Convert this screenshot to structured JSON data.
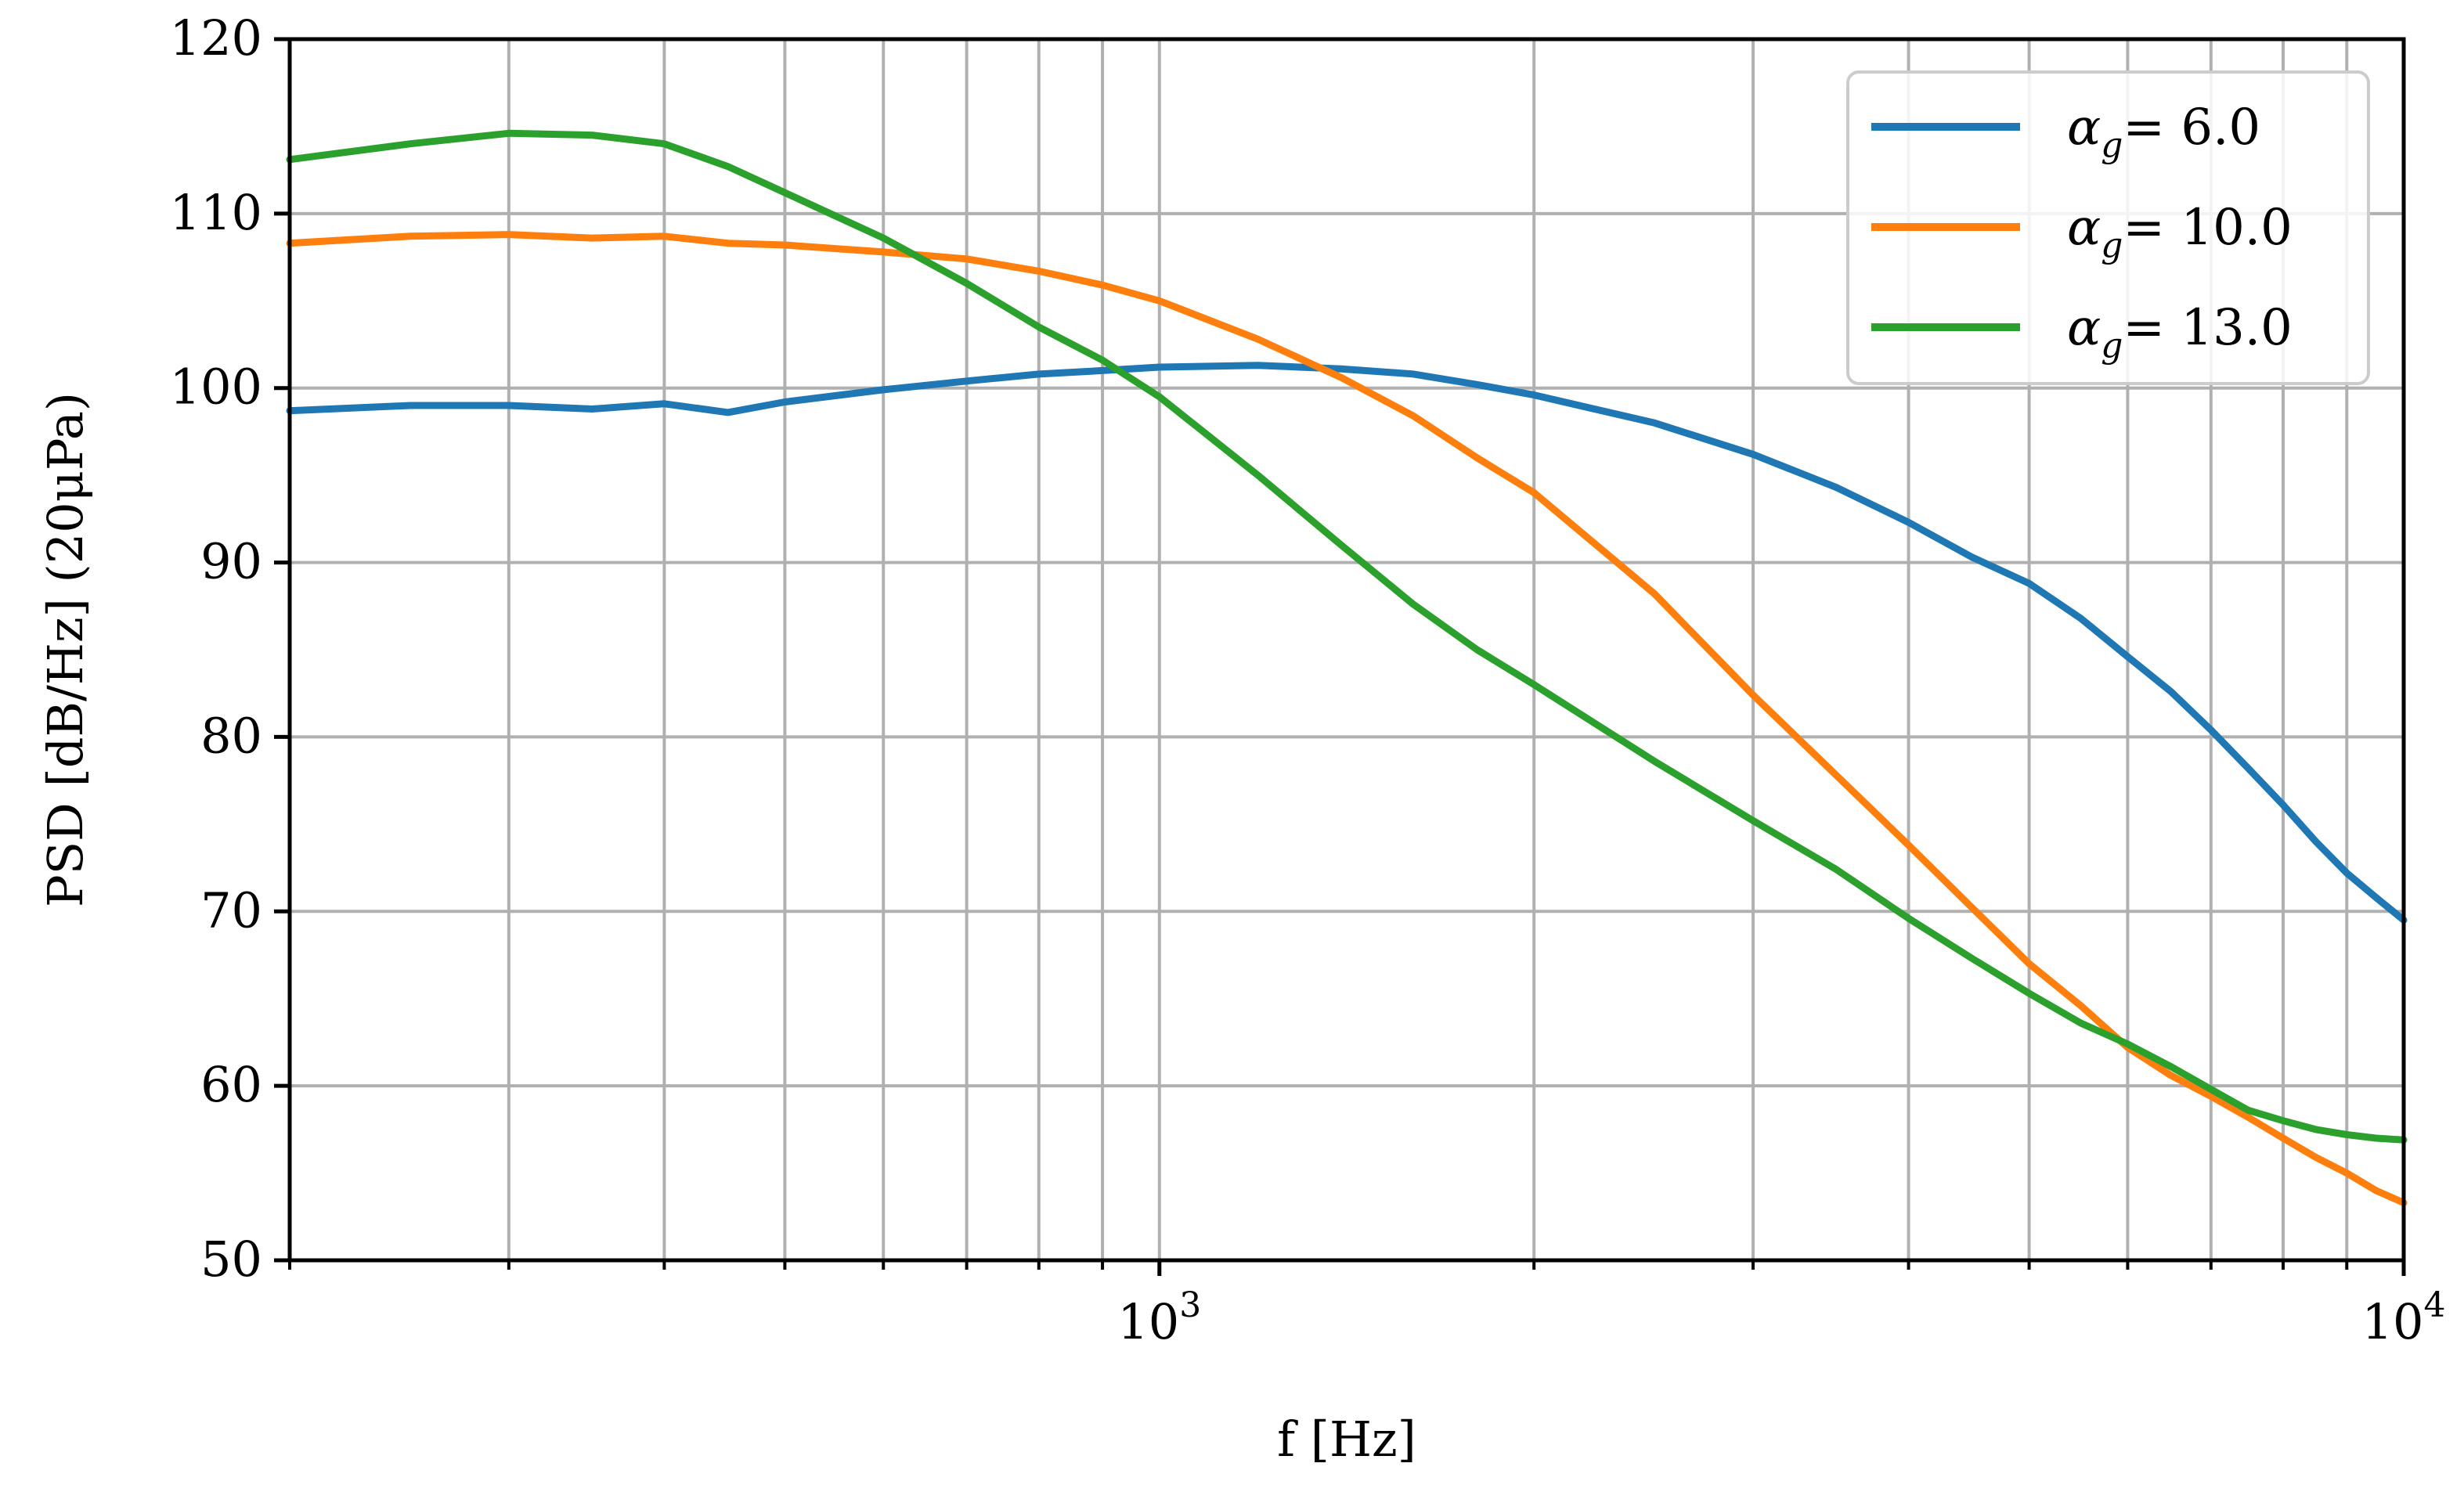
{
  "chart_data": {
    "type": "line",
    "xlabel": "f [Hz]",
    "ylabel": "PSD [dB/Hz] (20μPa)",
    "xscale": "log",
    "xlim": [
      200,
      10000
    ],
    "ylim": [
      50,
      120
    ],
    "grid": true,
    "legend_position": "top-right",
    "yticks": [
      50,
      60,
      70,
      80,
      90,
      100,
      110,
      120
    ],
    "ytick_labels": [
      "50",
      "60",
      "70",
      "80",
      "90",
      "100",
      "110",
      "120"
    ],
    "xticks_major": [
      1000,
      10000
    ],
    "xtick_labels_major": [
      {
        "base": "10",
        "exp": "3"
      },
      {
        "base": "10",
        "exp": "4"
      }
    ],
    "xticks_minor": [
      200,
      300,
      400,
      500,
      600,
      700,
      800,
      900,
      2000,
      3000,
      4000,
      5000,
      6000,
      7000,
      8000,
      9000
    ],
    "series": [
      {
        "name": "α_g= 6.0",
        "label_symbol": "α",
        "label_sub": "g",
        "label_value": "= 6.0",
        "color": "#1f77b4",
        "x": [
          200,
          250,
          300,
          350,
          400,
          450,
          500,
          600,
          700,
          800,
          900,
          1000,
          1200,
          1400,
          1600,
          1800,
          2000,
          2500,
          3000,
          3500,
          4000,
          4500,
          5000,
          5500,
          6000,
          6500,
          7000,
          7500,
          8000,
          8500,
          9000,
          9500,
          10000
        ],
        "y": [
          98.7,
          99.0,
          99.0,
          98.8,
          99.1,
          98.6,
          99.2,
          99.9,
          100.4,
          100.8,
          101.0,
          101.2,
          101.3,
          101.1,
          100.8,
          100.2,
          99.6,
          98.0,
          96.2,
          94.3,
          92.3,
          90.3,
          88.8,
          86.8,
          84.6,
          82.6,
          80.4,
          78.2,
          76.1,
          74.0,
          72.2,
          70.8,
          69.5
        ]
      },
      {
        "name": "α_g= 10.0",
        "label_symbol": "α",
        "label_sub": "g",
        "label_value": "= 10.0",
        "color": "#ff7f0e",
        "x": [
          200,
          250,
          300,
          350,
          400,
          450,
          500,
          600,
          700,
          800,
          900,
          1000,
          1200,
          1400,
          1600,
          1800,
          2000,
          2500,
          3000,
          3500,
          4000,
          4500,
          5000,
          5500,
          6000,
          6500,
          7000,
          7500,
          8000,
          8500,
          9000,
          9500,
          10000
        ],
        "y": [
          108.3,
          108.7,
          108.8,
          108.6,
          108.7,
          108.3,
          108.2,
          107.8,
          107.4,
          106.7,
          105.9,
          105.0,
          102.8,
          100.6,
          98.4,
          96.0,
          94.0,
          88.2,
          82.4,
          77.8,
          73.8,
          70.2,
          67.0,
          64.6,
          62.2,
          60.6,
          59.4,
          58.2,
          57.0,
          55.9,
          55.0,
          54.0,
          53.3
        ]
      },
      {
        "name": "α_g= 13.0",
        "label_symbol": "α",
        "label_sub": "g",
        "label_value": "= 13.0",
        "color": "#2ca02c",
        "x": [
          200,
          250,
          300,
          350,
          400,
          450,
          500,
          600,
          700,
          800,
          900,
          1000,
          1200,
          1400,
          1600,
          1800,
          2000,
          2500,
          3000,
          3500,
          4000,
          4500,
          5000,
          5500,
          6000,
          6500,
          7000,
          7500,
          8000,
          8500,
          9000,
          9500,
          10000
        ],
        "y": [
          113.1,
          114.0,
          114.6,
          114.5,
          114.0,
          112.7,
          111.2,
          108.6,
          106.0,
          103.5,
          101.6,
          99.5,
          95.0,
          91.0,
          87.6,
          85.0,
          83.0,
          78.6,
          75.2,
          72.4,
          69.6,
          67.3,
          65.3,
          63.6,
          62.4,
          61.1,
          59.8,
          58.6,
          58.0,
          57.5,
          57.2,
          57.0,
          56.9
        ]
      }
    ]
  }
}
